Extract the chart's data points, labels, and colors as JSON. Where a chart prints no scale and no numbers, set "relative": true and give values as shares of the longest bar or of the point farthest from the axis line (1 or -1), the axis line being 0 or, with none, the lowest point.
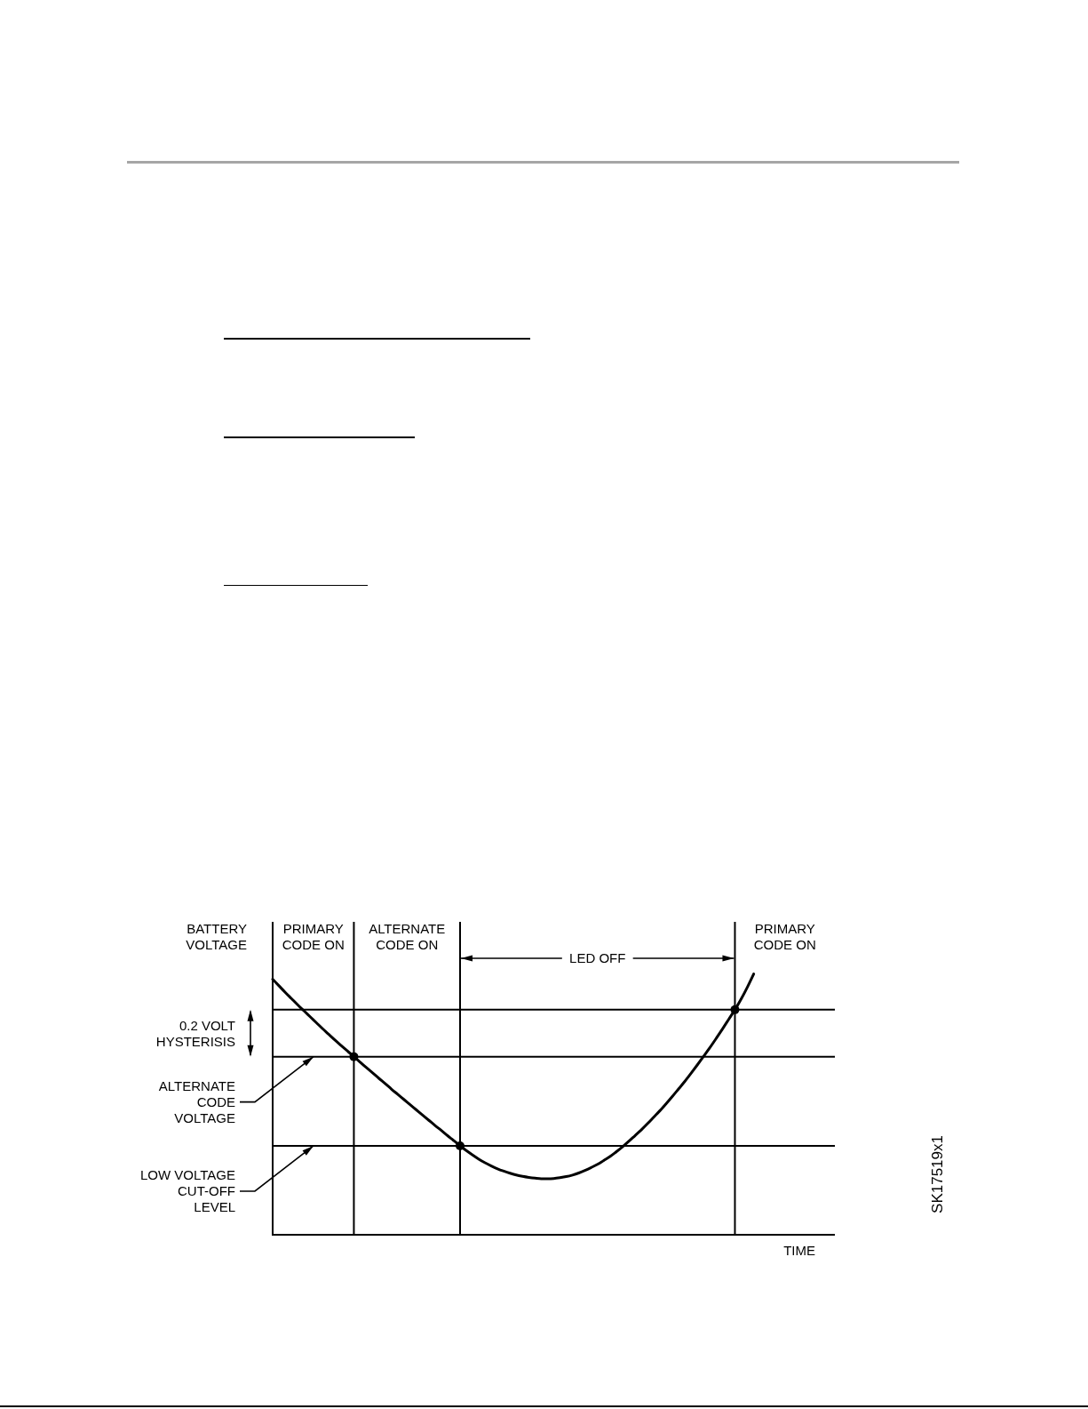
{
  "chart_data": {
    "type": "line",
    "relative": true,
    "grid": "x",
    "ylabel": "BATTERY VOLTAGE",
    "xlabel": "TIME",
    "categories": [
      null,
      null,
      null,
      null,
      null,
      null,
      null,
      null,
      null,
      null,
      null,
      null,
      null,
      null,
      null,
      null,
      null,
      null,
      null,
      null,
      null,
      null,
      null,
      null,
      null,
      null,
      null,
      null,
      null,
      null,
      null,
      null,
      null,
      null,
      null,
      null,
      null,
      null,
      null,
      null,
      null,
      null,
      null,
      null,
      null,
      null,
      null,
      null,
      null,
      null,
      null,
      null,
      null,
      null,
      null,
      null,
      null,
      null,
      null,
      null,
      null,
      null,
      null,
      null,
      null,
      null,
      null,
      null,
      null,
      null,
      null,
      null,
      null,
      null,
      null,
      null,
      null,
      null,
      null,
      null,
      null,
      null,
      null,
      null,
      null,
      null,
      null,
      null,
      null,
      null,
      null
    ],
    "series": [
      {
        "type": "line",
        "color": "#000000",
        "marker": "none",
        "values": [
          0.98,
          0.955,
          0.93,
          0.906,
          0.882,
          0.859,
          0.836,
          0.813,
          0.79,
          0.768,
          0.746,
          0.725,
          0.704,
          0.683,
          0.662,
          0.641,
          0.621,
          0.6,
          0.58,
          0.559,
          0.539,
          0.519,
          0.499,
          0.479,
          0.459,
          0.439,
          0.419,
          0.4,
          0.38,
          0.361,
          0.341,
          0.323,
          0.306,
          0.29,
          0.276,
          0.264,
          0.253,
          0.244,
          0.236,
          0.229,
          0.224,
          0.22,
          0.217,
          0.215,
          0.215,
          0.216,
          0.219,
          0.223,
          0.229,
          0.237,
          0.247,
          0.258,
          0.27,
          0.285,
          0.3,
          0.318,
          0.337,
          0.358,
          0.38,
          0.402,
          0.426,
          0.451,
          0.476,
          0.503,
          0.531,
          0.56,
          0.589,
          0.62,
          0.652,
          0.685,
          0.718,
          0.753,
          0.789,
          0.826,
          0.863,
          0.904,
          0.95,
          1,
          null,
          null,
          null,
          null,
          null,
          null,
          null,
          null,
          null,
          null,
          null,
          null,
          null
        ]
      },
      {
        "type": "line",
        "color": "#000000",
        "marker": "circle",
        "values": [
          null,
          null,
          null,
          null,
          null,
          null,
          null,
          null,
          null,
          null,
          null,
          null,
          null,
          0.683,
          null,
          null,
          null,
          null,
          null,
          null,
          null,
          null,
          null,
          null,
          null,
          null,
          null,
          null,
          null,
          null,
          0.341,
          null,
          null,
          null,
          null,
          null,
          null,
          null,
          null,
          null,
          null,
          null,
          null,
          null,
          null,
          null,
          null,
          null,
          null,
          null,
          null,
          null,
          null,
          null,
          null,
          null,
          null,
          null,
          null,
          null,
          null,
          null,
          null,
          null,
          null,
          null,
          null,
          null,
          null,
          null,
          null,
          null,
          null,
          null,
          0.863,
          null,
          null,
          null,
          null,
          null,
          null,
          null,
          null,
          null,
          null,
          null,
          null,
          null,
          null,
          null,
          null
        ]
      }
    ],
    "ref_lines": [
      {
        "axis": "y",
        "value": 0.863
      },
      {
        "axis": "y",
        "value": 0.683,
        "label": "ALTERNATE CODE VOLTAGE"
      },
      {
        "axis": "y",
        "value": 0.341,
        "label": "LOW VOLTAGE CUT-OFF LEVEL"
      }
    ],
    "annotations": [
      "PRIMARY CODE ON",
      "ALTERNATE CODE ON",
      "LED OFF",
      "PRIMARY CODE ON",
      "0.2 VOLT HYSTERISIS",
      "SK17519x1"
    ]
  }
}
